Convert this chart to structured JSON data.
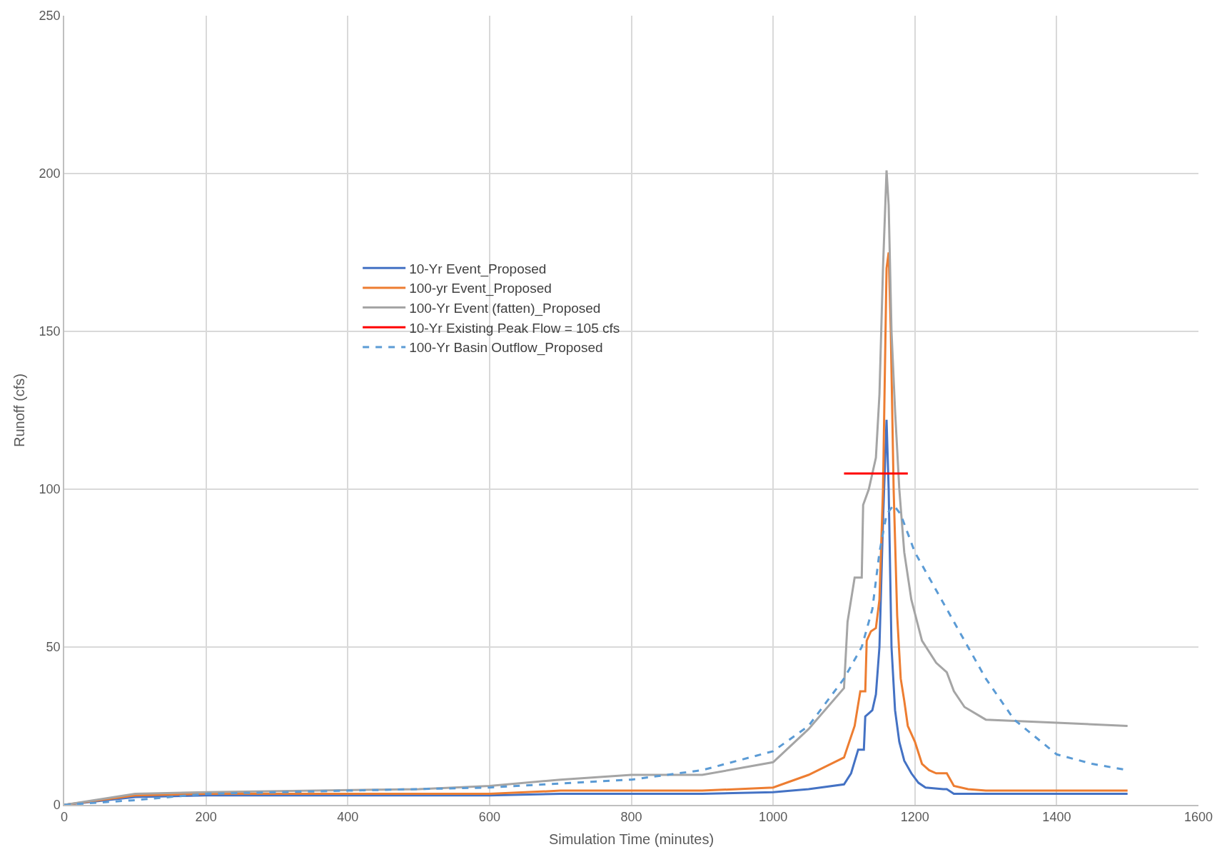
{
  "chart_data": {
    "type": "line",
    "xlabel": "Simulation Time (minutes)",
    "ylabel": "Runoff (cfs)",
    "xlim": [
      0,
      1600
    ],
    "xticks": [
      0,
      200,
      400,
      600,
      800,
      1000,
      1200,
      1400,
      1600
    ],
    "ylim": [
      0,
      250
    ],
    "yticks": [
      0,
      50,
      100,
      150,
      200,
      250
    ],
    "grid": true,
    "legend": "left",
    "series": [
      {
        "name": "10-Yr Event_Proposed",
        "color": "#4472c4",
        "x": [
          0,
          100,
          200,
          500,
          600,
          700,
          900,
          1000,
          1050,
          1100,
          1110,
          1120,
          1128,
          1130,
          1135,
          1140,
          1145,
          1150,
          1155,
          1160,
          1163,
          1167,
          1172,
          1178,
          1185,
          1195,
          1205,
          1215,
          1240,
          1245,
          1255,
          1300,
          1500
        ],
        "values": [
          0,
          2.5,
          3,
          3,
          3,
          3.5,
          3.5,
          4,
          5,
          6.5,
          10,
          17.5,
          17.5,
          28,
          29,
          30,
          35,
          50,
          90,
          122,
          100,
          50,
          30,
          20,
          14,
          10,
          7,
          5.5,
          5,
          5,
          3.5,
          3.5,
          3.5
        ]
      },
      {
        "name": "100-yr Event_Proposed",
        "color": "#ed7d31",
        "x": [
          0,
          100,
          200,
          600,
          700,
          900,
          1000,
          1050,
          1100,
          1115,
          1123,
          1130,
          1132,
          1138,
          1145,
          1150,
          1155,
          1160,
          1163,
          1166,
          1170,
          1175,
          1180,
          1185,
          1190,
          1200,
          1210,
          1220,
          1230,
          1245,
          1255,
          1275,
          1300,
          1500
        ],
        "values": [
          0,
          3,
          3.5,
          3.5,
          4.5,
          4.5,
          5.5,
          9.5,
          15,
          25,
          36,
          36,
          52,
          55,
          56,
          65,
          100,
          170,
          175,
          150,
          100,
          60,
          40,
          33,
          25,
          20,
          13,
          11,
          10,
          10,
          6,
          5,
          4.5,
          4.5
        ]
      },
      {
        "name": "100-Yr Event (fatten)_Proposed",
        "color": "#a5a5a5",
        "x": [
          0,
          100,
          200,
          500,
          600,
          700,
          800,
          900,
          1000,
          1050,
          1100,
          1105,
          1115,
          1125,
          1127,
          1135,
          1145,
          1150,
          1155,
          1160,
          1163,
          1167,
          1172,
          1178,
          1185,
          1195,
          1210,
          1230,
          1245,
          1255,
          1270,
          1300,
          1400,
          1500
        ],
        "values": [
          0,
          3.5,
          4,
          5,
          6,
          8,
          9.5,
          9.5,
          13.5,
          24,
          37,
          58,
          72,
          72,
          95,
          100,
          110,
          130,
          170,
          201,
          190,
          150,
          125,
          100,
          80,
          65,
          52,
          45,
          42,
          36,
          31,
          27,
          26,
          25
        ]
      },
      {
        "name": "10-Yr Existing Peak Flow = 105 cfs",
        "color": "#ff0000",
        "x": [
          1100,
          1190
        ],
        "values": [
          105,
          105
        ]
      },
      {
        "name": "100-Yr Basin Outflow_Proposed",
        "color": "#5b9bd5",
        "line_style": "dashed",
        "x": [
          0,
          100,
          200,
          400,
          600,
          800,
          900,
          1000,
          1050,
          1100,
          1125,
          1140,
          1150,
          1160,
          1170,
          1180,
          1200,
          1250,
          1300,
          1340,
          1400,
          1450,
          1500
        ],
        "values": [
          0,
          1.5,
          3.5,
          4.5,
          5.5,
          8,
          11,
          17,
          25,
          40,
          50,
          62,
          80,
          92,
          95,
          92,
          80,
          60,
          40,
          27,
          16,
          13,
          11
        ]
      }
    ]
  }
}
